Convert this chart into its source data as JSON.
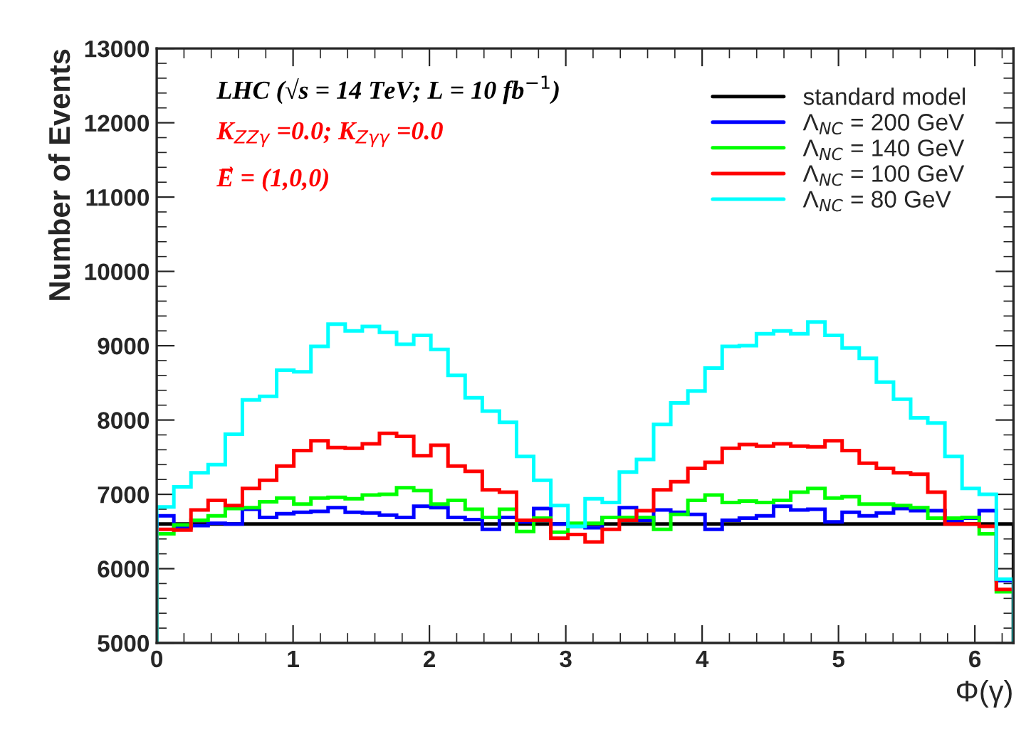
{
  "chart_data": {
    "type": "histogram",
    "xlabel": "Φ(γ)",
    "ylabel": "Number of Events",
    "annotations": [
      "LHC (√s = 14 TeV; L = 10 fb$^{−1}$)",
      "K$_{ZZγ}$ =0.0; K$_{Zγγ}$ =0.0",
      "E⃗ = (1,0,0)"
    ],
    "bins": [
      0,
      0.1257,
      0.2513,
      0.377,
      0.5027,
      0.6283,
      0.754,
      0.8796,
      1.0053,
      1.131,
      1.2566,
      1.3823,
      1.508,
      1.6336,
      1.7593,
      1.885,
      2.0106,
      2.1363,
      2.2619,
      2.3876,
      2.5133,
      2.6389,
      2.7646,
      2.8903,
      3.0159,
      3.1416,
      3.2673,
      3.3929,
      3.5186,
      3.6442,
      3.7699,
      3.8956,
      4.0212,
      4.1469,
      4.2726,
      4.3982,
      4.5239,
      4.6496,
      4.7752,
      4.9009,
      5.0265,
      5.1522,
      5.2779,
      5.4035,
      5.5292,
      5.6549,
      5.7805,
      5.9062,
      6.0319,
      6.1575,
      6.2832
    ],
    "series": [
      {
        "name": "standard model",
        "color": "#000000",
        "values": [
          6600,
          6600,
          6600,
          6600,
          6600,
          6600,
          6600,
          6600,
          6600,
          6600,
          6600,
          6600,
          6600,
          6600,
          6600,
          6600,
          6600,
          6600,
          6600,
          6600,
          6600,
          6600,
          6600,
          6600,
          6600,
          6600,
          6600,
          6600,
          6600,
          6600,
          6600,
          6600,
          6600,
          6600,
          6600,
          6600,
          6600,
          6600,
          6600,
          6600,
          6600,
          6600,
          6600,
          6600,
          6600,
          6600,
          6600,
          6600,
          6600,
          6600
        ]
      },
      {
        "name": "Λ$_{NC}$ = 200 GeV",
        "color": "#0000ff",
        "values": [
          6710,
          6550,
          6580,
          6610,
          6600,
          6800,
          6690,
          6740,
          6760,
          6770,
          6820,
          6760,
          6750,
          6720,
          6690,
          6840,
          6820,
          6690,
          6660,
          6530,
          6690,
          6630,
          6810,
          6600,
          6570,
          6550,
          6690,
          6820,
          6650,
          6790,
          6760,
          6730,
          6530,
          6650,
          6680,
          6710,
          6840,
          6790,
          6800,
          6630,
          6760,
          6710,
          6750,
          6810,
          6780,
          6780,
          6640,
          6680,
          6780,
          5840
        ]
      },
      {
        "name": "Λ$_{NC}$ = 140 GeV",
        "color": "#00ff00",
        "values": [
          6470,
          6590,
          6650,
          6710,
          6810,
          6820,
          6900,
          6950,
          6870,
          6950,
          6960,
          6940,
          6990,
          7000,
          7090,
          7050,
          6870,
          6920,
          6800,
          6690,
          6800,
          6500,
          6680,
          6490,
          6610,
          6610,
          6690,
          6690,
          6690,
          6530,
          6730,
          6920,
          6990,
          6890,
          6910,
          6890,
          6920,
          7030,
          7080,
          6950,
          6970,
          6870,
          6870,
          6850,
          6820,
          6680,
          6680,
          6690,
          6470,
          5690
        ]
      },
      {
        "name": "Λ$_{NC}$ = 100 GeV",
        "color": "#ff0000",
        "values": [
          6530,
          6520,
          6790,
          6920,
          6850,
          7080,
          7190,
          7380,
          7590,
          7720,
          7630,
          7620,
          7680,
          7820,
          7780,
          7520,
          7660,
          7380,
          7310,
          7060,
          7030,
          6650,
          6650,
          6410,
          6460,
          6360,
          6530,
          6650,
          6780,
          7060,
          7170,
          7350,
          7430,
          7620,
          7670,
          7650,
          7680,
          7650,
          7640,
          7720,
          7590,
          7420,
          7350,
          7290,
          7270,
          7030,
          6600,
          6600,
          6570,
          5720
        ]
      },
      {
        "name": "Λ$_{NC}$ = 80 GeV",
        "color": "#00ffff",
        "values": [
          6830,
          7100,
          7290,
          7400,
          7810,
          8270,
          8320,
          8670,
          8650,
          8990,
          9290,
          9200,
          9260,
          9180,
          9020,
          9140,
          8950,
          8600,
          8300,
          8120,
          7970,
          7510,
          7190,
          6850,
          6570,
          6940,
          6890,
          7300,
          7470,
          7940,
          8230,
          8390,
          8700,
          8990,
          9000,
          9160,
          9200,
          9160,
          9320,
          9140,
          8970,
          8830,
          8510,
          8280,
          8030,
          7960,
          7510,
          7080,
          7000,
          5860
        ]
      }
    ],
    "xlim": [
      0,
      6.2832
    ],
    "xticks": [
      0,
      1,
      2,
      3,
      4,
      5,
      6
    ],
    "ylim": [
      5000,
      13000
    ],
    "yticks": [
      5000,
      6000,
      7000,
      8000,
      9000,
      10000,
      11000,
      12000,
      13000
    ],
    "legend": "top right",
    "grid": false
  }
}
